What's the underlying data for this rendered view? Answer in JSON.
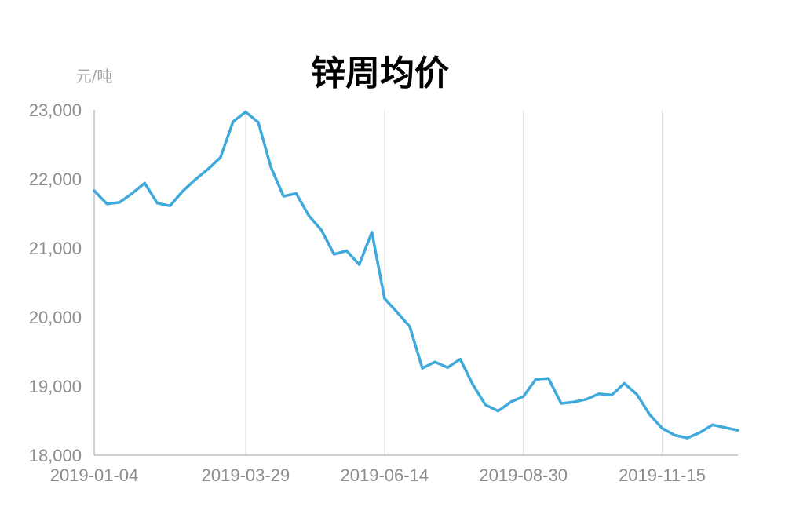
{
  "chart_data": {
    "type": "line",
    "title": "锌周均价",
    "ylabel": "元/吨",
    "xlabel": "",
    "ylim": [
      18000,
      23000
    ],
    "y_ticks": [
      "18,000",
      "19,000",
      "20,000",
      "21,000",
      "22,000",
      "23,000"
    ],
    "x_ticks": [
      "2019-01-04",
      "2019-03-29",
      "2019-06-14",
      "2019-08-30",
      "2019-11-15"
    ],
    "grid": "vertical",
    "series": [
      {
        "name": "",
        "color": "#3fa9db",
        "x": [
          "2019-01-04",
          "2019-01-11",
          "2019-01-18",
          "2019-01-25",
          "2019-02-01",
          "2019-02-08",
          "2019-02-15",
          "2019-02-22",
          "2019-03-01",
          "2019-03-08",
          "2019-03-15",
          "2019-03-22",
          "2019-03-29",
          "2019-04-05",
          "2019-04-12",
          "2019-04-19",
          "2019-04-26",
          "2019-05-03",
          "2019-05-10",
          "2019-05-17",
          "2019-05-24",
          "2019-05-31",
          "2019-06-07",
          "2019-06-14",
          "2019-06-21",
          "2019-06-28",
          "2019-07-05",
          "2019-07-12",
          "2019-07-19",
          "2019-07-26",
          "2019-08-02",
          "2019-08-09",
          "2019-08-16",
          "2019-08-23",
          "2019-08-30",
          "2019-09-06",
          "2019-09-13",
          "2019-09-20",
          "2019-09-27",
          "2019-10-04",
          "2019-10-11",
          "2019-10-18",
          "2019-10-25",
          "2019-11-01",
          "2019-11-08",
          "2019-11-15",
          "2019-11-22",
          "2019-11-29",
          "2019-12-06",
          "2019-12-13",
          "2019-12-20",
          "2019-12-27"
        ],
        "values": [
          21830,
          21640,
          21660,
          21790,
          21940,
          21650,
          21610,
          21820,
          21990,
          22140,
          22310,
          22830,
          22970,
          22820,
          22170,
          21750,
          21790,
          21470,
          21260,
          20910,
          20960,
          20760,
          21230,
          20270,
          20070,
          19860,
          19260,
          19350,
          19270,
          19390,
          19020,
          18730,
          18640,
          18770,
          18850,
          19100,
          19110,
          18750,
          18770,
          18810,
          18890,
          18870,
          19040,
          18880,
          18590,
          18390,
          18290,
          18250,
          18330,
          18440,
          18400,
          18360
        ]
      }
    ]
  }
}
